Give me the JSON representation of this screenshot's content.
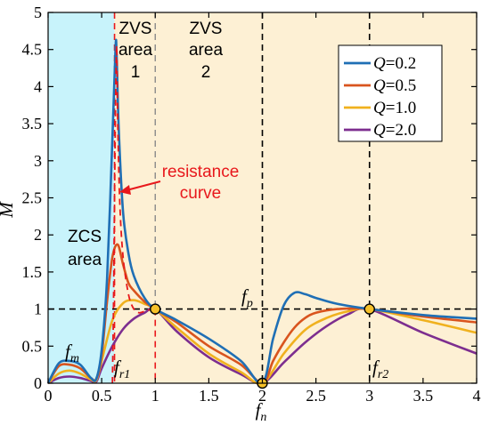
{
  "colors": {
    "zcs_fill": "#c8f3fb",
    "zvs_fill": "#fdf0d4",
    "q02": "#1f6fb5",
    "q05": "#d9541e",
    "q10": "#f0b11e",
    "q20": "#7d2e8f",
    "resistance": "#e8181c",
    "marker_fill": "#f6c12a"
  },
  "regions": {
    "zvs1_line1": "ZVS",
    "zvs1_line2": "area",
    "zvs1_line3": "1",
    "zvs2_line1": "ZVS",
    "zvs2_line2": "area",
    "zvs2_line3": "2",
    "zcs_line1": "ZCS",
    "zcs_line2": "area"
  },
  "annotations": {
    "resistance_line1": "resistance",
    "resistance_line2": "curve",
    "fm_f": "f",
    "fm_sub": "m",
    "fr1_f": "f",
    "fr1_sub": "r1",
    "fp_f": "f",
    "fp_sub": "p",
    "fr2_f": "f",
    "fr2_sub": "r2"
  },
  "chart_data": {
    "type": "line",
    "xlabel": "f_n",
    "ylabel": "M",
    "xlim": [
      0,
      4
    ],
    "ylim": [
      0,
      5
    ],
    "xticks": [
      "0",
      "0.5",
      "1",
      "1.5",
      "2",
      "2.5",
      "3",
      "3.5",
      "4"
    ],
    "yticks": [
      "0",
      "0.5",
      "1",
      "1.5",
      "2",
      "2.5",
      "3",
      "3.5",
      "4",
      "4.5",
      "5"
    ],
    "legend_position": "top-right",
    "series": [
      {
        "name": "Q=0.2",
        "q_label": "Q",
        "q_value": "=0.2",
        "x": [
          0,
          0.1,
          0.2,
          0.3,
          0.4,
          0.45,
          0.5,
          0.55,
          0.6,
          0.63,
          0.64,
          0.66,
          0.7,
          0.75,
          0.8,
          0.9,
          1.0,
          1.2,
          1.5,
          1.8,
          2.0,
          2.1,
          2.2,
          2.3,
          2.4,
          2.5,
          2.7,
          3.0,
          3.5,
          4.0
        ],
        "y": [
          0,
          0.27,
          0.3,
          0.25,
          0.07,
          0.06,
          0.45,
          1.4,
          3.3,
          4.55,
          4.4,
          3.4,
          2.3,
          1.75,
          1.45,
          1.15,
          1.0,
          0.85,
          0.6,
          0.3,
          0,
          0.6,
          1.05,
          1.22,
          1.2,
          1.15,
          1.07,
          1.0,
          0.92,
          0.87
        ]
      },
      {
        "name": "Q=0.5",
        "q_label": "Q",
        "q_value": "=0.5",
        "x": [
          0,
          0.1,
          0.2,
          0.3,
          0.4,
          0.45,
          0.5,
          0.55,
          0.6,
          0.65,
          0.7,
          0.75,
          0.8,
          0.9,
          1.0,
          1.2,
          1.5,
          1.8,
          2.0,
          2.1,
          2.2,
          2.3,
          2.4,
          2.5,
          2.7,
          3.0,
          3.5,
          4.0
        ],
        "y": [
          0,
          0.23,
          0.25,
          0.2,
          0.07,
          0.06,
          0.38,
          1.1,
          1.7,
          1.87,
          1.6,
          1.35,
          1.25,
          1.1,
          1.0,
          0.82,
          0.5,
          0.25,
          0,
          0.3,
          0.55,
          0.75,
          0.88,
          0.95,
          1.0,
          1.0,
          0.9,
          0.82
        ]
      },
      {
        "name": "Q=1.0",
        "q_label": "Q",
        "q_value": "=1.0",
        "x": [
          0,
          0.1,
          0.2,
          0.3,
          0.4,
          0.45,
          0.5,
          0.6,
          0.7,
          0.8,
          0.9,
          1.0,
          1.2,
          1.5,
          1.8,
          2.0,
          2.2,
          2.4,
          2.6,
          2.8,
          3.0,
          3.5,
          4.0
        ],
        "y": [
          0,
          0.13,
          0.17,
          0.13,
          0.05,
          0.04,
          0.3,
          0.85,
          1.08,
          1.12,
          1.07,
          1.0,
          0.75,
          0.4,
          0.15,
          0,
          0.4,
          0.72,
          0.88,
          0.97,
          1.0,
          0.85,
          0.68
        ]
      },
      {
        "name": "Q=2.0",
        "q_label": "Q",
        "q_value": "=2.0",
        "x": [
          0,
          0.1,
          0.2,
          0.3,
          0.4,
          0.45,
          0.5,
          0.6,
          0.7,
          0.8,
          0.9,
          1.0,
          1.2,
          1.5,
          1.8,
          2.0,
          2.2,
          2.4,
          2.6,
          2.8,
          3.0,
          3.5,
          4.0
        ],
        "y": [
          0,
          0.07,
          0.09,
          0.07,
          0.03,
          0.02,
          0.2,
          0.5,
          0.73,
          0.87,
          0.95,
          1.0,
          0.7,
          0.35,
          0.12,
          0,
          0.28,
          0.55,
          0.77,
          0.93,
          1.0,
          0.68,
          0.4
        ]
      }
    ],
    "resistance_curve": {
      "x": [
        0.6,
        0.61,
        0.62,
        0.63,
        0.64,
        0.65,
        0.67,
        0.7,
        0.75,
        0.8,
        0.85,
        0.9,
        0.95,
        1.0
      ],
      "y": [
        0,
        1.0,
        2.5,
        3.8,
        4.55,
        3.5,
        2.4,
        1.7,
        1.2,
        1.0,
        0.95,
        0.97,
        0.99,
        1.0
      ]
    },
    "markers": [
      {
        "x": 1,
        "y": 1
      },
      {
        "x": 2,
        "y": 0
      },
      {
        "x": 3,
        "y": 1
      }
    ],
    "ref_lines": {
      "vertical_dashed_black": [
        2,
        3
      ],
      "vertical_dashed_gray": [
        1
      ],
      "vertical_dashed_red": [
        0.62,
        1
      ],
      "horizontal_dashed": [
        1
      ]
    },
    "region_bounds": {
      "zcs": [
        0,
        0.62
      ],
      "zvs": [
        0.62,
        4
      ]
    }
  }
}
